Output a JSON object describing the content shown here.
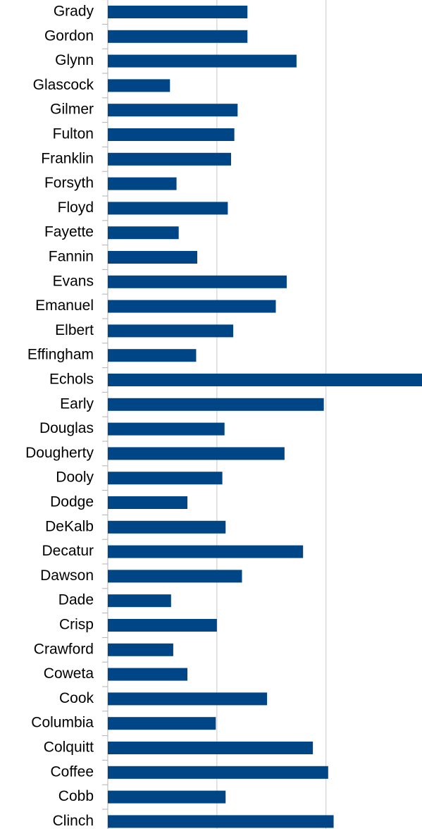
{
  "chart_data": {
    "type": "barh",
    "categories": [
      "Grady",
      "Gordon",
      "Glynn",
      "Glascock",
      "Gilmer",
      "Fulton",
      "Franklin",
      "Forsyth",
      "Floyd",
      "Fayette",
      "Fannin",
      "Evans",
      "Emanuel",
      "Elbert",
      "Effingham",
      "Echols",
      "Early",
      "Douglas",
      "Dougherty",
      "Dooly",
      "Dodge",
      "DeKalb",
      "Decatur",
      "Dawson",
      "Dade",
      "Crisp",
      "Crawford",
      "Coweta",
      "Cook",
      "Columbia",
      "Colquitt",
      "Coffee",
      "Cobb",
      "Clinch"
    ],
    "values": [
      1.28,
      1.28,
      1.73,
      0.57,
      1.19,
      1.16,
      1.13,
      0.63,
      1.1,
      0.65,
      0.82,
      1.64,
      1.54,
      1.15,
      0.81,
      2.88,
      1.98,
      1.07,
      1.62,
      1.05,
      0.73,
      1.08,
      1.79,
      1.23,
      0.58,
      1.0,
      0.6,
      0.73,
      1.46,
      0.99,
      1.88,
      2.02,
      1.08,
      2.07
    ],
    "color": "#004586",
    "xlim": [
      0,
      2.88
    ],
    "xticks": [
      0,
      1,
      2
    ],
    "grid": true
  }
}
